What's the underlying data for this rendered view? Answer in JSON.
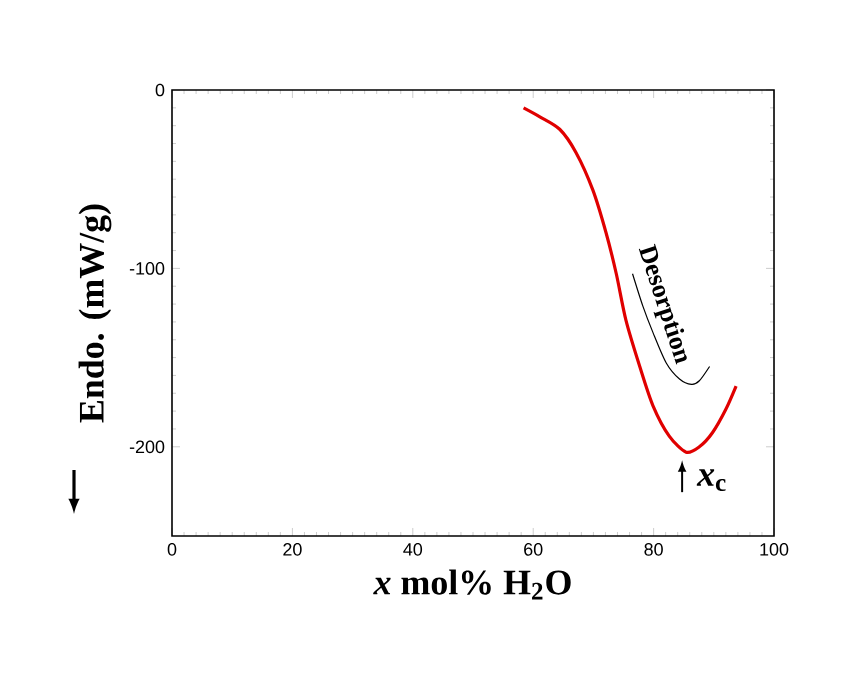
{
  "chart_data": {
    "type": "line",
    "xlabel": "*x*  mol% H$_{2}$O",
    "ylabel": "Endo. (mW/g)",
    "xlim": [
      0,
      100
    ],
    "ylim": [
      -250,
      0
    ],
    "xticks": [
      0,
      20,
      40,
      60,
      80,
      100
    ],
    "yticks": [
      -200,
      -100,
      0
    ],
    "marker": "none",
    "line_style": "solid",
    "series": [
      {
        "color": "#e00000",
        "x": [
          58.4,
          61.1,
          64.4,
          67.1,
          69.9,
          72.1,
          73.8,
          75.4,
          77.7,
          79.9,
          82.6,
          85.4,
          87.6,
          89.8,
          92.0,
          93.7
        ],
        "values": [
          -10,
          -15,
          -22,
          -35,
          -56,
          -80,
          -103,
          -129,
          -155,
          -177,
          -194,
          -203,
          -200,
          -192,
          -179,
          -166
        ]
      },
      {
        "color": "#000000",
        "x": [
          76.5,
          78.2,
          79.9,
          82.1,
          84.3,
          86.3,
          87.6,
          89.3
        ],
        "values": [
          -103,
          -121,
          -136,
          -153,
          -162,
          -165,
          -163,
          -155
        ]
      }
    ],
    "annotations": [
      "Desorption",
      "*x*$_{c}$"
    ]
  }
}
